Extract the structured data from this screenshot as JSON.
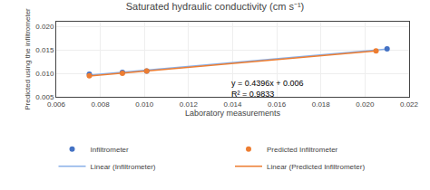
{
  "chart_data": {
    "type": "scatter",
    "title": "Saturated hydraulic conductivity (cm s⁻¹)",
    "xlabel": "Laboratory measurements",
    "ylabel": "Predicted using the infiltrometer",
    "series": [
      {
        "name": "Infiltrometer",
        "type": "scatter",
        "marker": "circle",
        "color": "#4472C4",
        "x": [
          0.0075,
          0.009,
          0.0101,
          0.021
        ],
        "values": [
          0.0098,
          0.0102,
          0.0105,
          0.0152
        ]
      },
      {
        "name": "Predicted Infiltrometer",
        "type": "scatter",
        "marker": "circle",
        "color": "#ED7D31",
        "x": [
          0.0075,
          0.009,
          0.0101,
          0.0205
        ],
        "values": [
          0.0095,
          0.01,
          0.0105,
          0.0148
        ]
      },
      {
        "name": "Linear (Infiltrometer)",
        "type": "line",
        "line_style": "solid",
        "color": "#8ab0e8",
        "x": [
          0.0075,
          0.021
        ],
        "values": [
          0.0096189,
          0.0151603
        ]
      },
      {
        "name": "Linear (Predicted Infiltrometer)",
        "type": "line",
        "line_style": "solid",
        "color": "#ED7D31",
        "x": [
          0.0075,
          0.0205
        ],
        "values": [
          0.0094404,
          0.0147912
        ]
      }
    ],
    "annotations": [
      {
        "text": "y = 0.4396x + 0.006\nR² = 0.9833",
        "x": 0.01385,
        "y": 0.0093
      }
    ],
    "xlim": [
      0.006,
      0.022
    ],
    "ylim": [
      0.005,
      0.021
    ],
    "xticks": [
      0.006,
      0.008,
      {
        "value": 0.01,
        "label": "0.010"
      },
      0.012,
      0.014,
      0.016,
      0.018,
      {
        "value": 0.02,
        "label": "0.020"
      },
      0.022
    ],
    "yticks": [
      0.005,
      {
        "value": 0.01,
        "label": "0.010"
      },
      0.015,
      {
        "value": 0.02,
        "label": "0.020"
      }
    ],
    "grid": true,
    "legend": "bottom"
  }
}
